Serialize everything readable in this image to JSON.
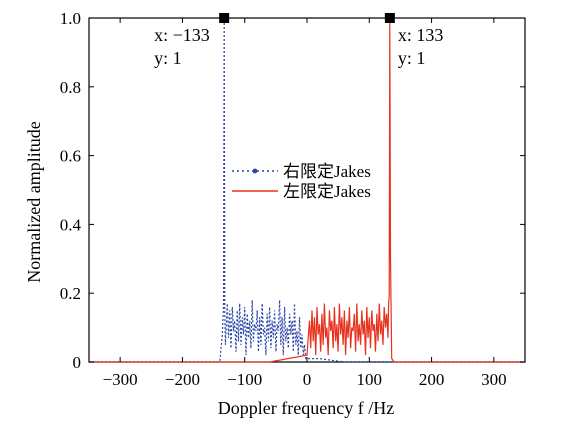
{
  "chart_data": {
    "type": "line",
    "xlabel": "Doppler frequency f /Hz",
    "ylabel": "Normalized amplitude",
    "xlim": [
      -350,
      350
    ],
    "ylim": [
      0,
      1.0
    ],
    "xticks": [
      -300,
      -200,
      -100,
      0,
      100,
      200,
      300
    ],
    "xtick_labels": [
      "−300",
      "−200",
      "−100",
      "0",
      "100",
      "200",
      "300"
    ],
    "yticks": [
      0,
      0.2,
      0.4,
      0.6,
      0.8,
      1.0
    ],
    "ytick_labels": [
      "0",
      "0.2",
      "0.4",
      "0.6",
      "0.8",
      "1.0"
    ],
    "grid": false,
    "legend_placement": "center",
    "series": [
      {
        "name": "右限定Jakes",
        "color": "#2a46a8",
        "style": "dotted-marker",
        "x": [
          -350,
          -140,
          -136,
          -134,
          -133,
          -132,
          -131,
          -128,
          -126,
          -124,
          -122,
          -120,
          -118,
          -116,
          -114,
          -112,
          -110,
          -108,
          -106,
          -104,
          -102,
          -100,
          -98,
          -96,
          -94,
          -92,
          -90,
          -88,
          -86,
          -84,
          -82,
          -80,
          -78,
          -76,
          -74,
          -72,
          -70,
          -68,
          -66,
          -64,
          -62,
          -60,
          -58,
          -56,
          -54,
          -52,
          -50,
          -48,
          -46,
          -44,
          -42,
          -40,
          -38,
          -36,
          -34,
          -32,
          -30,
          -28,
          -26,
          -24,
          -22,
          -20,
          -18,
          -16,
          -14,
          -12,
          -10,
          -8,
          -6,
          -4,
          -2,
          0,
          20,
          60,
          100,
          133,
          350
        ],
        "y": [
          0,
          0,
          0.08,
          0.16,
          1.0,
          0.14,
          0.05,
          0.17,
          0.07,
          0.15,
          0.04,
          0.16,
          0.09,
          0.12,
          0.03,
          0.15,
          0.06,
          0.17,
          0.05,
          0.13,
          0.08,
          0.16,
          0.02,
          0.14,
          0.07,
          0.12,
          0.04,
          0.18,
          0.06,
          0.11,
          0.09,
          0.15,
          0.03,
          0.13,
          0.05,
          0.17,
          0.08,
          0.1,
          0.02,
          0.14,
          0.06,
          0.16,
          0.04,
          0.12,
          0.07,
          0.15,
          0.03,
          0.11,
          0.09,
          0.18,
          0.05,
          0.13,
          0.02,
          0.16,
          0.06,
          0.1,
          0.04,
          0.14,
          0.08,
          0.12,
          0.03,
          0.17,
          0.05,
          0.09,
          0.02,
          0.13,
          0.04,
          0.08,
          0.02,
          0.05,
          0.01,
          0.01,
          0.01,
          0.0,
          0.0,
          0.0,
          0.0
        ]
      },
      {
        "name": "左限定Jakes",
        "color": "#e8321e",
        "style": "solid",
        "x": [
          -350,
          -133,
          -60,
          0,
          2,
          4,
          6,
          8,
          10,
          12,
          14,
          16,
          18,
          20,
          22,
          24,
          26,
          28,
          30,
          32,
          34,
          36,
          38,
          40,
          42,
          44,
          46,
          48,
          50,
          52,
          54,
          56,
          58,
          60,
          62,
          64,
          66,
          68,
          70,
          72,
          74,
          76,
          78,
          80,
          82,
          84,
          86,
          88,
          90,
          92,
          94,
          96,
          98,
          100,
          102,
          104,
          106,
          108,
          110,
          112,
          114,
          116,
          118,
          120,
          122,
          124,
          126,
          128,
          130,
          131,
          132,
          133,
          134,
          136,
          140,
          350
        ],
        "y": [
          0,
          0,
          0.0,
          0.02,
          0.07,
          0.12,
          0.04,
          0.15,
          0.06,
          0.13,
          0.02,
          0.16,
          0.08,
          0.11,
          0.03,
          0.14,
          0.05,
          0.17,
          0.07,
          0.1,
          0.02,
          0.15,
          0.09,
          0.12,
          0.04,
          0.16,
          0.06,
          0.11,
          0.03,
          0.17,
          0.08,
          0.13,
          0.05,
          0.15,
          0.02,
          0.12,
          0.07,
          0.16,
          0.04,
          0.1,
          0.09,
          0.14,
          0.03,
          0.17,
          0.06,
          0.11,
          0.05,
          0.15,
          0.08,
          0.12,
          0.02,
          0.16,
          0.07,
          0.13,
          0.04,
          0.15,
          0.09,
          0.11,
          0.03,
          0.14,
          0.06,
          0.17,
          0.08,
          0.12,
          0.05,
          0.16,
          0.1,
          0.14,
          0.07,
          0.17,
          0.19,
          1.0,
          0.3,
          0.01,
          0.0,
          0.0
        ]
      }
    ],
    "annotations": [
      {
        "marker_x": -133,
        "marker_y": 1.0,
        "line1": "x: −133",
        "line2": "y: 1"
      },
      {
        "marker_x": 133,
        "marker_y": 1.0,
        "line1": "x: 133",
        "line2": "y: 1"
      }
    ]
  }
}
